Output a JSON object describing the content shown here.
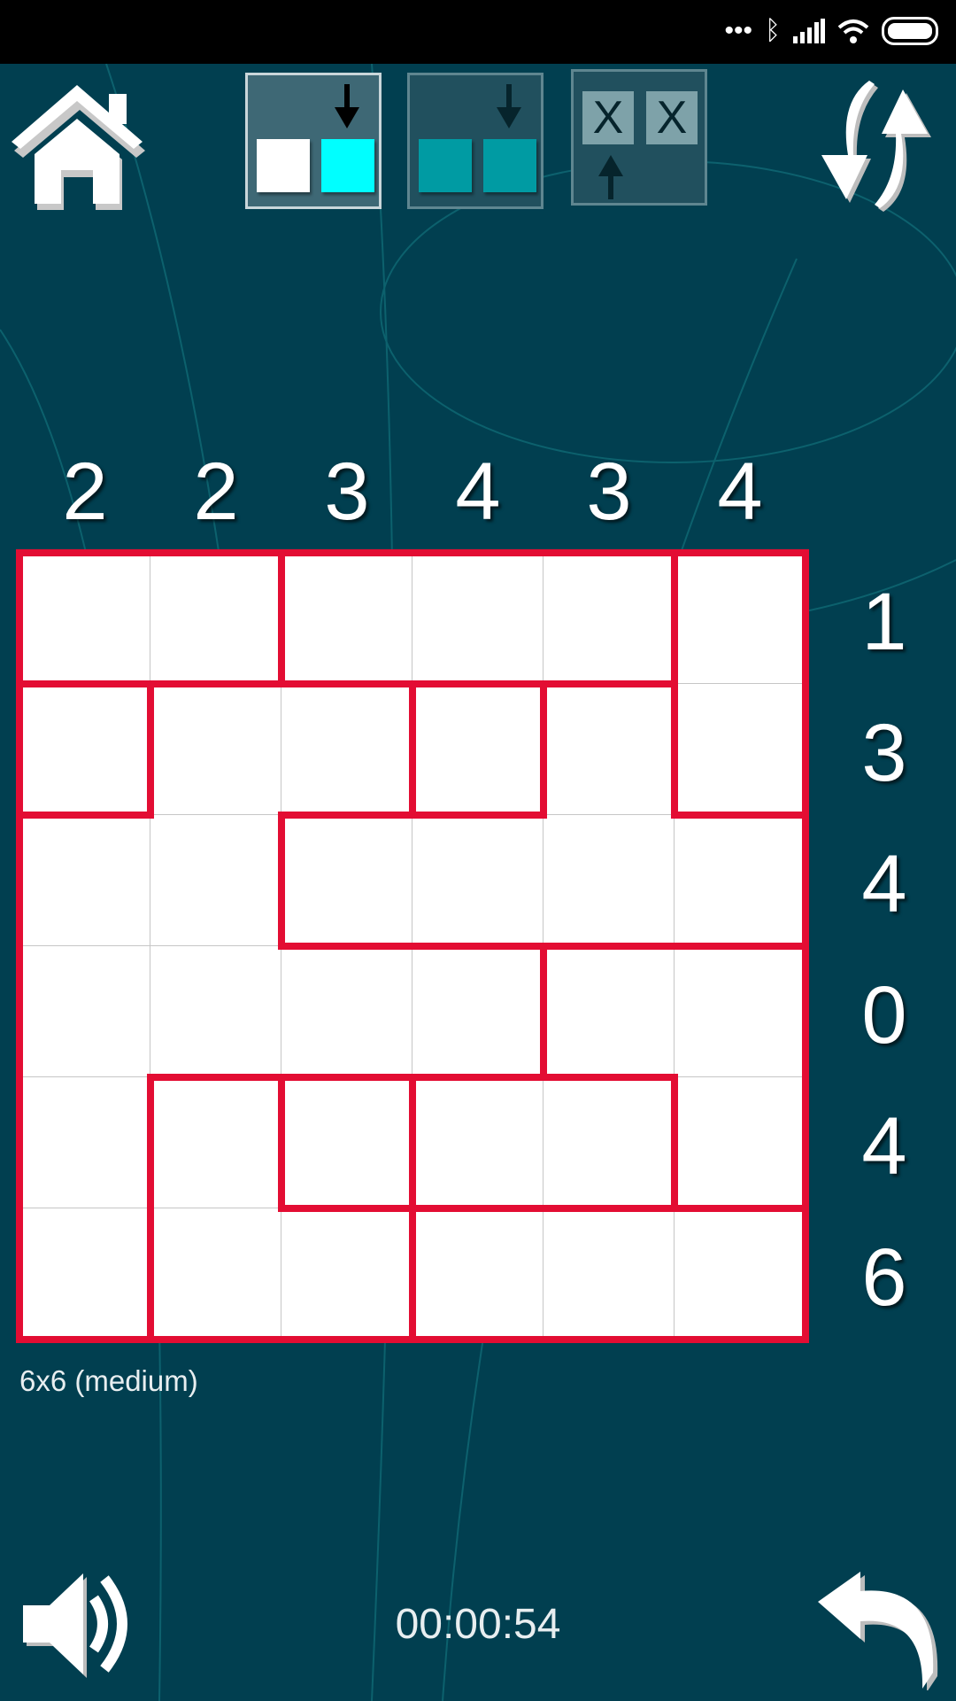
{
  "status_bar": {
    "icons": [
      "dots-icon",
      "bluetooth-icon",
      "signal-icon",
      "wifi-icon",
      "battery-icon"
    ]
  },
  "toolbar": {
    "home_icon": "home-icon",
    "modes": [
      {
        "name": "fill-mode",
        "active": true,
        "colors": [
          "#ffffff",
          "#00ffff"
        ]
      },
      {
        "name": "shade-mode",
        "active": false,
        "colors": [
          "#009ba3",
          "#009ba3"
        ]
      },
      {
        "name": "mark-mode",
        "active": false,
        "marks": [
          "X",
          "X"
        ]
      }
    ],
    "refresh_icon": "swap-arrows-icon"
  },
  "puzzle": {
    "size_label": "6x6 (medium)",
    "column_clues": [
      "2",
      "2",
      "3",
      "4",
      "3",
      "4"
    ],
    "row_clues": [
      "1",
      "3",
      "4",
      "0",
      "4",
      "6"
    ],
    "regions": [
      [
        "A",
        "A",
        "B",
        "B",
        "B",
        "C"
      ],
      [
        "D",
        "E",
        "E",
        "F",
        "G",
        "C"
      ],
      [
        "E",
        "E",
        "G",
        "G",
        "G",
        "G"
      ],
      [
        "E",
        "E",
        "E",
        "E",
        "H",
        "H"
      ],
      [
        "E",
        "I",
        "J",
        "K",
        "K",
        "H"
      ],
      [
        "E",
        "I",
        "I",
        "L",
        "L",
        "L"
      ]
    ],
    "wall_color": "#e30d33",
    "cell_color": "#ffffff"
  },
  "footer": {
    "timer": "00:00:54",
    "sound_icon": "speaker-icon",
    "undo_icon": "undo-icon"
  }
}
